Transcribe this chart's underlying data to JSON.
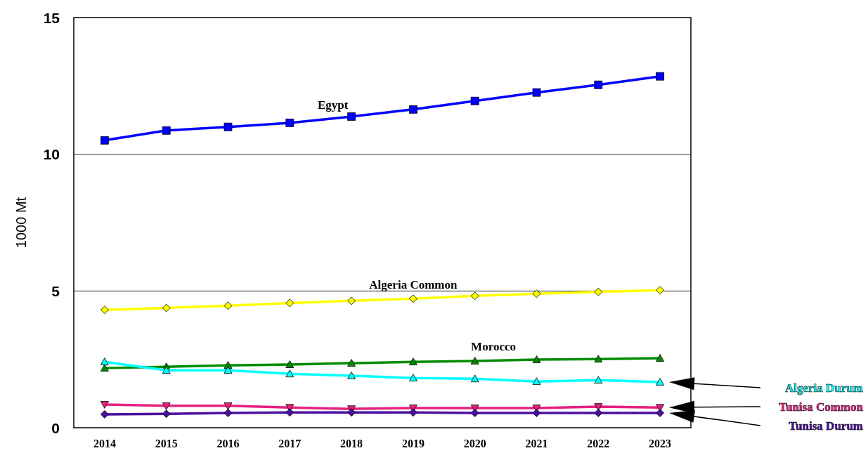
{
  "chart_data": {
    "type": "line",
    "ylabel": "1000 Mt",
    "categories": [
      "2014",
      "2015",
      "2016",
      "2017",
      "2018",
      "2019",
      "2020",
      "2021",
      "2022",
      "2023"
    ],
    "ylim": [
      0,
      15
    ],
    "yticks": [
      0,
      5,
      10,
      15
    ],
    "grid": "y",
    "line_style": "solid",
    "series": [
      {
        "name": "Egypt",
        "color": "#0000ff",
        "marker": "square",
        "values": [
          10.51,
          10.87,
          11.0,
          11.15,
          11.38,
          11.64,
          11.95,
          12.26,
          12.54,
          12.85
        ]
      },
      {
        "name": "Algeria Common",
        "color": "#ffff00",
        "marker": "diamond",
        "values": [
          4.31,
          4.38,
          4.46,
          4.56,
          4.64,
          4.72,
          4.82,
          4.9,
          4.97,
          5.03
        ]
      },
      {
        "name": "Morocco",
        "color": "#008c00",
        "marker": "triangle",
        "values": [
          2.18,
          2.23,
          2.28,
          2.31,
          2.36,
          2.41,
          2.44,
          2.49,
          2.51,
          2.54
        ]
      },
      {
        "name": "Algeria Durum",
        "color": "#00ffff",
        "marker": "triangle",
        "values": [
          2.41,
          2.1,
          2.1,
          1.97,
          1.9,
          1.82,
          1.79,
          1.69,
          1.74,
          1.67
        ]
      },
      {
        "name": "Tunisa Common",
        "color": "#e6207f",
        "marker": "triangle-down",
        "values": [
          0.85,
          0.8,
          0.8,
          0.74,
          0.69,
          0.72,
          0.72,
          0.72,
          0.77,
          0.74
        ]
      },
      {
        "name": "Tunisa Durum",
        "color": "#4b0fa0",
        "marker": "diamond",
        "values": [
          0.49,
          0.51,
          0.54,
          0.56,
          0.56,
          0.56,
          0.54,
          0.54,
          0.54,
          0.54
        ]
      }
    ]
  }
}
